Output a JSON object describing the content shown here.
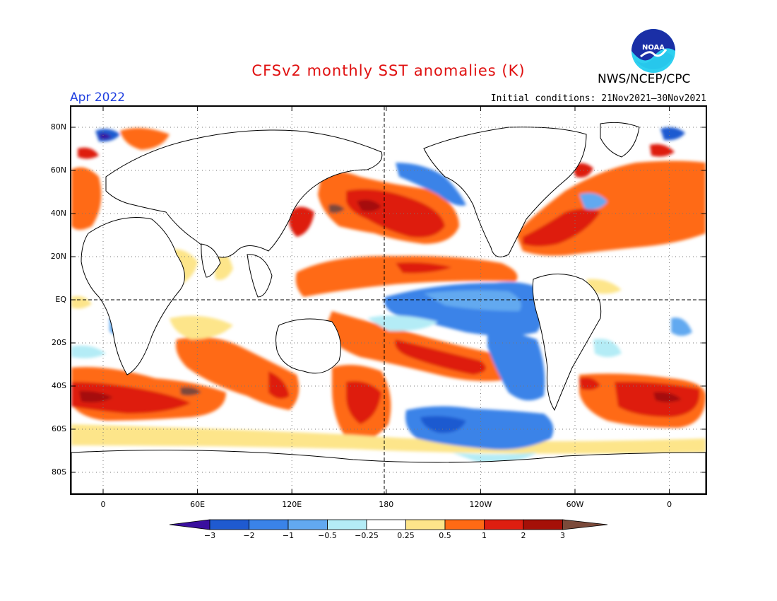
{
  "title": "CFSv2 monthly SST anomalies (K)",
  "agency": "NWS/NCEP/CPC",
  "valid_month": "Apr 2022",
  "initial_conditions": "Initial conditions: 21Nov2021–30Nov2021",
  "logo_text": "NOAA",
  "lat_labels": [
    "80N",
    "60N",
    "40N",
    "20N",
    "EQ",
    "20S",
    "40S",
    "60S",
    "80S"
  ],
  "lon_labels": [
    "0",
    "60E",
    "120E",
    "180",
    "120W",
    "60W",
    "0"
  ],
  "colorbar": {
    "ticks": [
      "−3",
      "−2",
      "−1",
      "−0.5",
      "−0.25",
      "0.25",
      "0.5",
      "1",
      "2",
      "3"
    ],
    "colors": [
      "#3a0f9e",
      "#1f5ad0",
      "#3a83e8",
      "#62a9f0",
      "#b4ecf6",
      "#ffffff",
      "#fde58a",
      "#ff6a14",
      "#de1e10",
      "#a51008",
      "#7b4a3a"
    ]
  }
}
